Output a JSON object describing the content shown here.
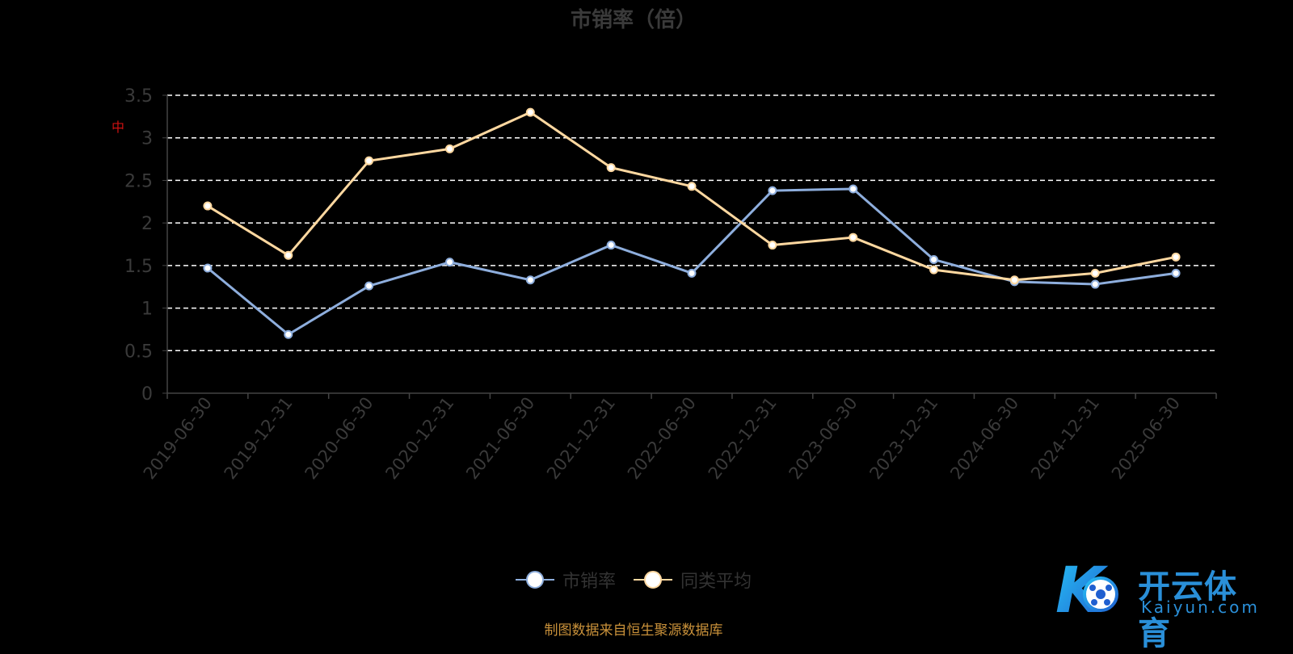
{
  "chart_data": {
    "type": "line",
    "title": "市销率（倍）",
    "categories": [
      "2019-06-30",
      "2019-12-31",
      "2020-06-30",
      "2020-12-31",
      "2021-06-30",
      "2021-12-31",
      "2022-06-30",
      "2022-12-31",
      "2023-06-30",
      "2023-12-31",
      "2024-06-30",
      "2024-12-31",
      "2025-06-30"
    ],
    "series": [
      {
        "name": "市销率",
        "color": "#8eaedd",
        "values": [
          1.47,
          0.69,
          1.26,
          1.54,
          1.33,
          1.74,
          1.41,
          2.38,
          2.4,
          1.57,
          1.31,
          1.28,
          1.41
        ]
      },
      {
        "name": "同类平均",
        "color": "#ffd8a0",
        "values": [
          2.2,
          1.62,
          2.73,
          2.87,
          3.3,
          2.65,
          2.43,
          1.74,
          1.83,
          1.45,
          1.33,
          1.41,
          1.6
        ]
      }
    ],
    "yticks": [
      "0",
      "0.5",
      "1",
      "1.5",
      "2",
      "2.5",
      "3",
      "3.5"
    ],
    "ylim": [
      0,
      3.5
    ],
    "grid": true,
    "legend_position": "bottom-center"
  },
  "watermark_text": "中",
  "source_text": "制图数据来自恒生聚源数据库",
  "logo": {
    "cn": "开云体育",
    "en": "Kaiyun.com",
    "mark": "K"
  }
}
